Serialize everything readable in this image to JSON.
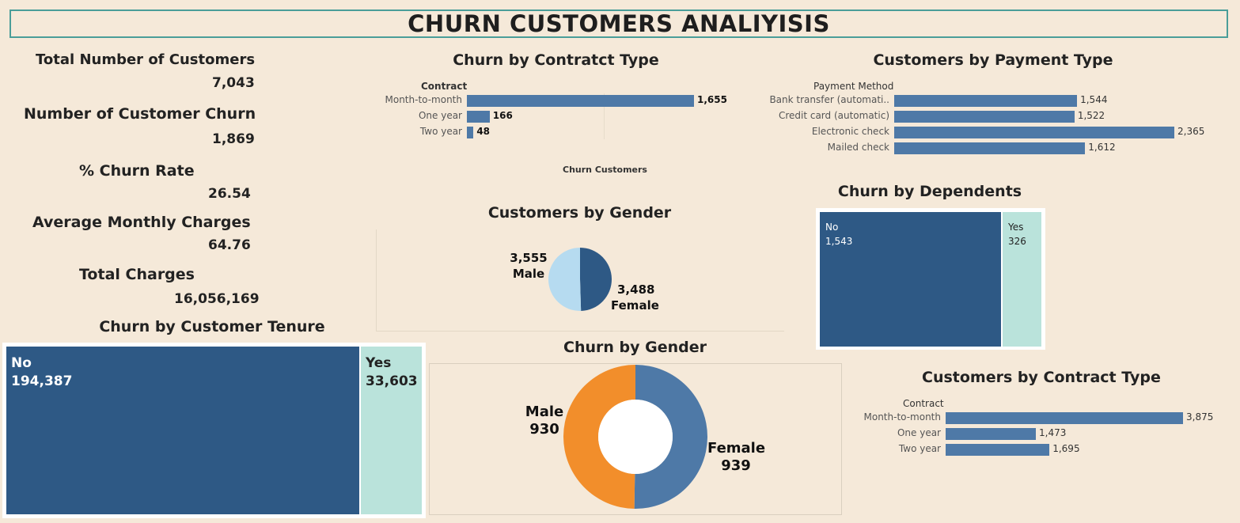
{
  "title": "CHURN CUSTOMERS ANALIYISIS",
  "kpis": [
    {
      "label": "Total Number of Customers",
      "value": "7,043"
    },
    {
      "label": "Number of Customer Churn",
      "value": "1,869"
    },
    {
      "label": "% Churn Rate",
      "value": "26.54"
    },
    {
      "label": "Average Monthly Charges",
      "value": "64.76"
    },
    {
      "label": "Total Charges",
      "value": "16,056,169"
    }
  ],
  "colors": {
    "bar": "#4e79a7",
    "treemap_no": "#2e5985",
    "treemap_yes": "#bae3db",
    "pie_male": "#b6dbf0",
    "pie_female": "#2e5985",
    "donut_male": "#f28e2b",
    "donut_female": "#4e79a7",
    "background": "#f5e9d9"
  },
  "chart_data": [
    {
      "id": "churn_by_contract",
      "type": "bar",
      "title": "Churn by Contratct Type",
      "ylabel": "Contract",
      "xlabel": "Churn Customers",
      "categories": [
        "Month-to-month",
        "One year",
        "Two year"
      ],
      "values": [
        1655,
        166,
        48
      ],
      "value_labels": [
        "1,655",
        "166",
        "48"
      ],
      "xlim": [
        0,
        1900
      ]
    },
    {
      "id": "customers_by_payment",
      "type": "bar",
      "title": "Customers by Payment Type",
      "ylabel": "Payment Method",
      "categories": [
        "Bank transfer (automati..",
        "Credit card (automatic)",
        "Electronic check",
        "Mailed check"
      ],
      "values": [
        1544,
        1522,
        2365,
        1612
      ],
      "value_labels": [
        "1,544",
        "1,522",
        "2,365",
        "1,612"
      ],
      "xlim": [
        0,
        2365
      ]
    },
    {
      "id": "customers_by_gender",
      "type": "pie",
      "title": "Customers by Gender",
      "categories": [
        "Male",
        "Female"
      ],
      "values": [
        3555,
        3488
      ],
      "value_labels": [
        "3,555",
        "3,488"
      ]
    },
    {
      "id": "churn_by_dependents",
      "type": "treemap",
      "title": "Churn by Dependents",
      "categories": [
        "No",
        "Yes"
      ],
      "values": [
        1543,
        326
      ],
      "value_labels": [
        "1,543",
        "326"
      ]
    },
    {
      "id": "churn_by_tenure",
      "type": "treemap",
      "title": "Churn by Customer Tenure",
      "categories": [
        "No",
        "Yes"
      ],
      "values": [
        194387,
        33603
      ],
      "value_labels": [
        "194,387",
        "33,603"
      ]
    },
    {
      "id": "churn_by_gender",
      "type": "pie",
      "donut": true,
      "title": "Churn by Gender",
      "categories": [
        "Male",
        "Female"
      ],
      "values": [
        930,
        939
      ],
      "value_labels": [
        "930",
        "939"
      ]
    },
    {
      "id": "customers_by_contract",
      "type": "bar",
      "title": "Customers by Contract Type",
      "ylabel": "Contract",
      "categories": [
        "Month-to-month",
        "One year",
        "Two year"
      ],
      "values": [
        3875,
        1473,
        1695
      ],
      "value_labels": [
        "3,875",
        "1,473",
        "1,695"
      ],
      "xlim": [
        0,
        3875
      ]
    }
  ]
}
